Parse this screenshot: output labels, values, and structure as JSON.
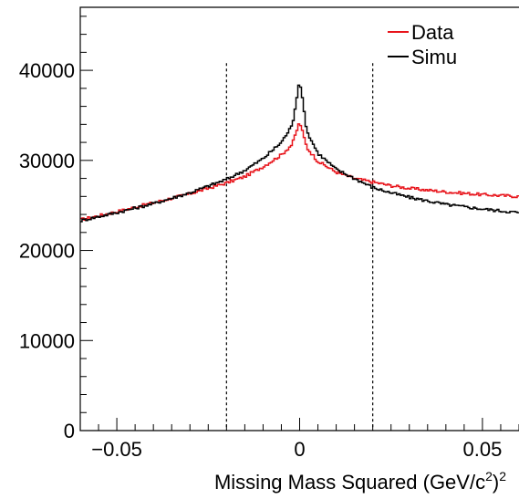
{
  "chart_data": {
    "type": "line",
    "title": "",
    "xlabel_text": "Missing Mass Squared (GeV/c",
    "xlabel_sup1": "2",
    "xlabel_close": ")",
    "xlabel_sup2": "2",
    "ylabel": "",
    "xlim": [
      -0.06,
      0.06
    ],
    "ylim": [
      0,
      47000
    ],
    "x_ticks": [
      -0.05,
      0,
      0.05
    ],
    "x_tick_labels": [
      "−0.05",
      "0",
      "0.05"
    ],
    "y_ticks": [
      0,
      10000,
      20000,
      30000,
      40000
    ],
    "y_tick_labels": [
      "0",
      "10000",
      "20000",
      "30000",
      "40000"
    ],
    "cut_lines_x": [
      -0.02,
      0.02
    ],
    "legend_position": "top-right",
    "series": [
      {
        "name": "Data",
        "color": "#e8141b",
        "x": [
          -0.06,
          -0.05,
          -0.04,
          -0.03,
          -0.02,
          -0.015,
          -0.01,
          -0.005,
          -0.002,
          0,
          0.002,
          0.005,
          0.01,
          0.015,
          0.02,
          0.025,
          0.03,
          0.04,
          0.05,
          0.06
        ],
        "y": [
          23400,
          24300,
          25300,
          26300,
          27500,
          28200,
          29300,
          30600,
          31800,
          34300,
          31400,
          29900,
          28700,
          28000,
          27600,
          27200,
          26900,
          26500,
          26200,
          26000
        ]
      },
      {
        "name": "Simu",
        "color": "#000000",
        "x": [
          -0.06,
          -0.05,
          -0.04,
          -0.03,
          -0.02,
          -0.015,
          -0.01,
          -0.005,
          -0.002,
          0,
          0.002,
          0.005,
          0.01,
          0.015,
          0.02,
          0.025,
          0.03,
          0.04,
          0.05,
          0.06
        ],
        "y": [
          23300,
          24200,
          25200,
          26400,
          27900,
          28900,
          30200,
          32000,
          33900,
          39000,
          33200,
          30800,
          29000,
          28000,
          27000,
          26400,
          25900,
          25100,
          24600,
          24200
        ]
      }
    ]
  }
}
